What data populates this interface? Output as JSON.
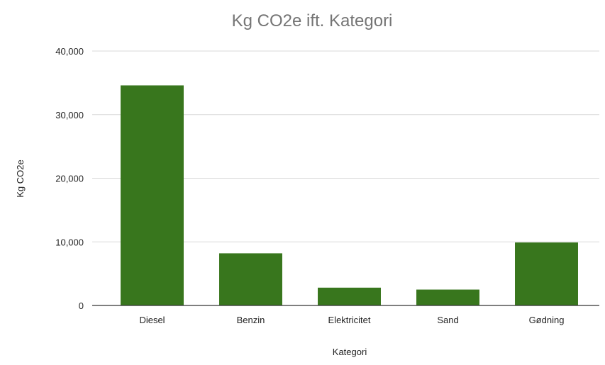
{
  "chart_data": {
    "type": "bar",
    "title": "Kg CO2e ift. Kategori",
    "xlabel": "Kategori",
    "ylabel": "Kg CO2e",
    "categories": [
      "Diesel",
      "Benzin",
      "Elektricitet",
      "Sand",
      "Gødning"
    ],
    "values": [
      34600,
      8200,
      2800,
      2500,
      9900
    ],
    "ylim": [
      0,
      40000
    ],
    "yticks": [
      0,
      10000,
      20000,
      30000,
      40000
    ],
    "ytick_labels": [
      "0",
      "10,000",
      "20,000",
      "30,000",
      "40,000"
    ],
    "grid": true,
    "legend": "none",
    "bar_color": "#38761d"
  }
}
